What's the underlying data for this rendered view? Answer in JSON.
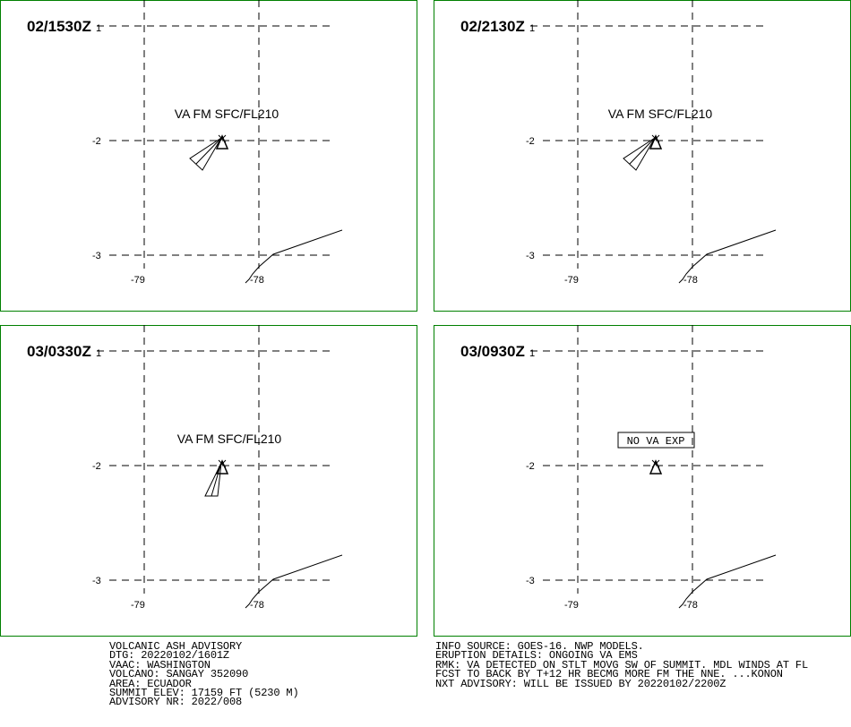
{
  "panels": [
    {
      "time_main": "02/1530Z",
      "time_sub": "1",
      "label": "VA FM SFC/FL210",
      "label_boxed": false,
      "plume": "sw_wedge"
    },
    {
      "time_main": "02/2130Z",
      "time_sub": "1",
      "label": "VA FM SFC/FL210",
      "label_boxed": false,
      "plume": "sw_wedge"
    },
    {
      "time_main": "03/0330Z",
      "time_sub": "1",
      "label": "VA FM SFC/FL210",
      "label_boxed": false,
      "plume": "s_wedge"
    },
    {
      "time_main": "03/0930Z",
      "time_sub": "1",
      "label": "NO VA EXP",
      "label_boxed": true,
      "plume": "none"
    }
  ],
  "axes": {
    "lat_ticks": [
      "-2",
      "-3"
    ],
    "lon_ticks": [
      "-79",
      "-78"
    ]
  },
  "advisory_left": [
    "VOLCANIC ASH ADVISORY",
    "DTG: 20220102/1601Z",
    "VAAC: WASHINGTON",
    "VOLCANO: SANGAY 352090",
    "AREA: ECUADOR",
    "SUMMIT ELEV: 17159 FT (5230 M)",
    "ADVISORY NR: 2022/008"
  ],
  "advisory_right": [
    "INFO SOURCE: GOES-16. NWP MODELS.",
    "ERUPTION DETAILS: ONGOING VA EMS",
    "RMK: VA DETECTED ON STLT MOVG SW OF SUMMIT. MDL WINDS AT FL",
    "FCST TO BACK BY T+12 HR BECMG MORE FM THE NNE. ...KONON",
    "NXT ADVISORY: WILL BE ISSUED BY 20220102/2200Z"
  ],
  "colors": {
    "frame": "#008000",
    "ink": "#000000"
  }
}
